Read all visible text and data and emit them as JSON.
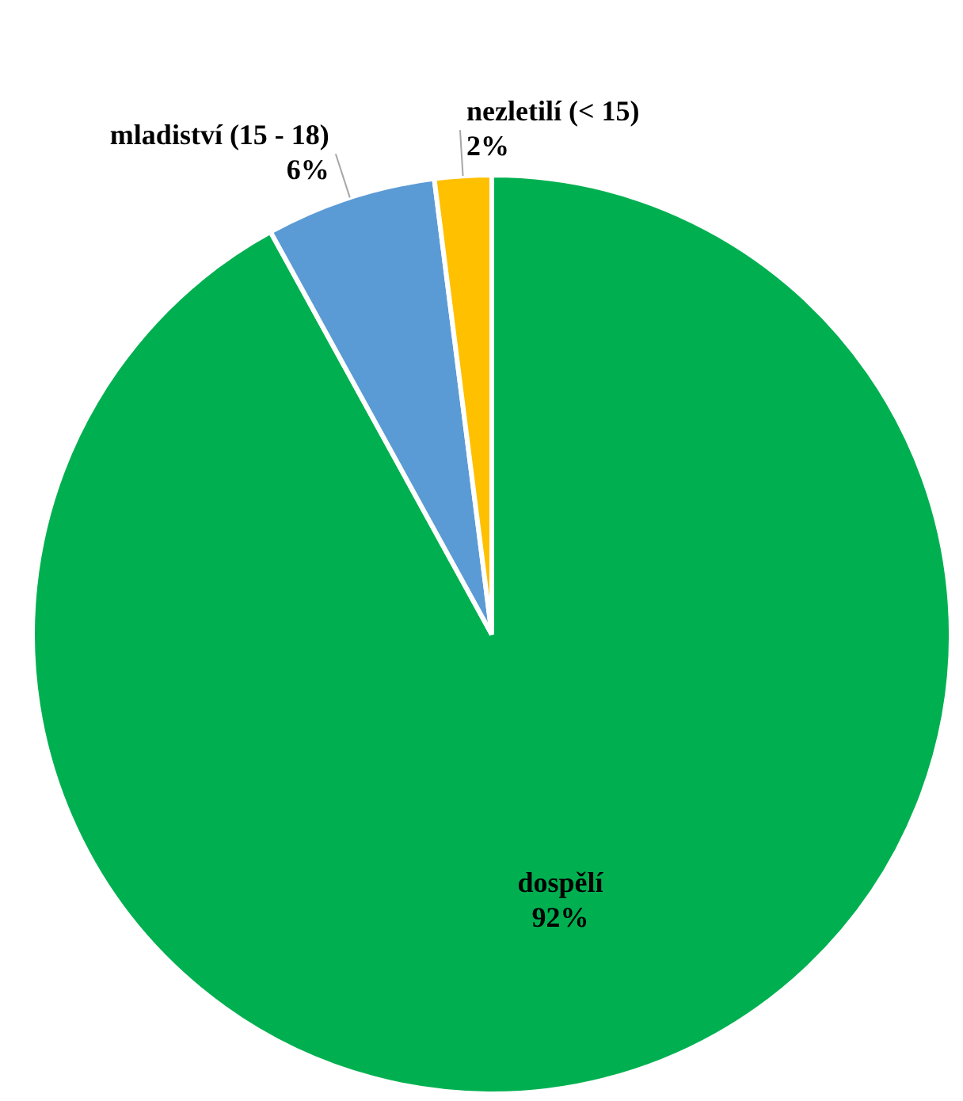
{
  "chart_data": {
    "type": "pie",
    "categories": [
      "dospělí",
      "mladiství (15 - 18)",
      "nezletilí (< 15)"
    ],
    "values": [
      92,
      6,
      2
    ],
    "colors": [
      "#00b050",
      "#5b9bd5",
      "#ffc000"
    ],
    "value_labels": [
      "92%",
      "6%",
      "2%"
    ]
  }
}
